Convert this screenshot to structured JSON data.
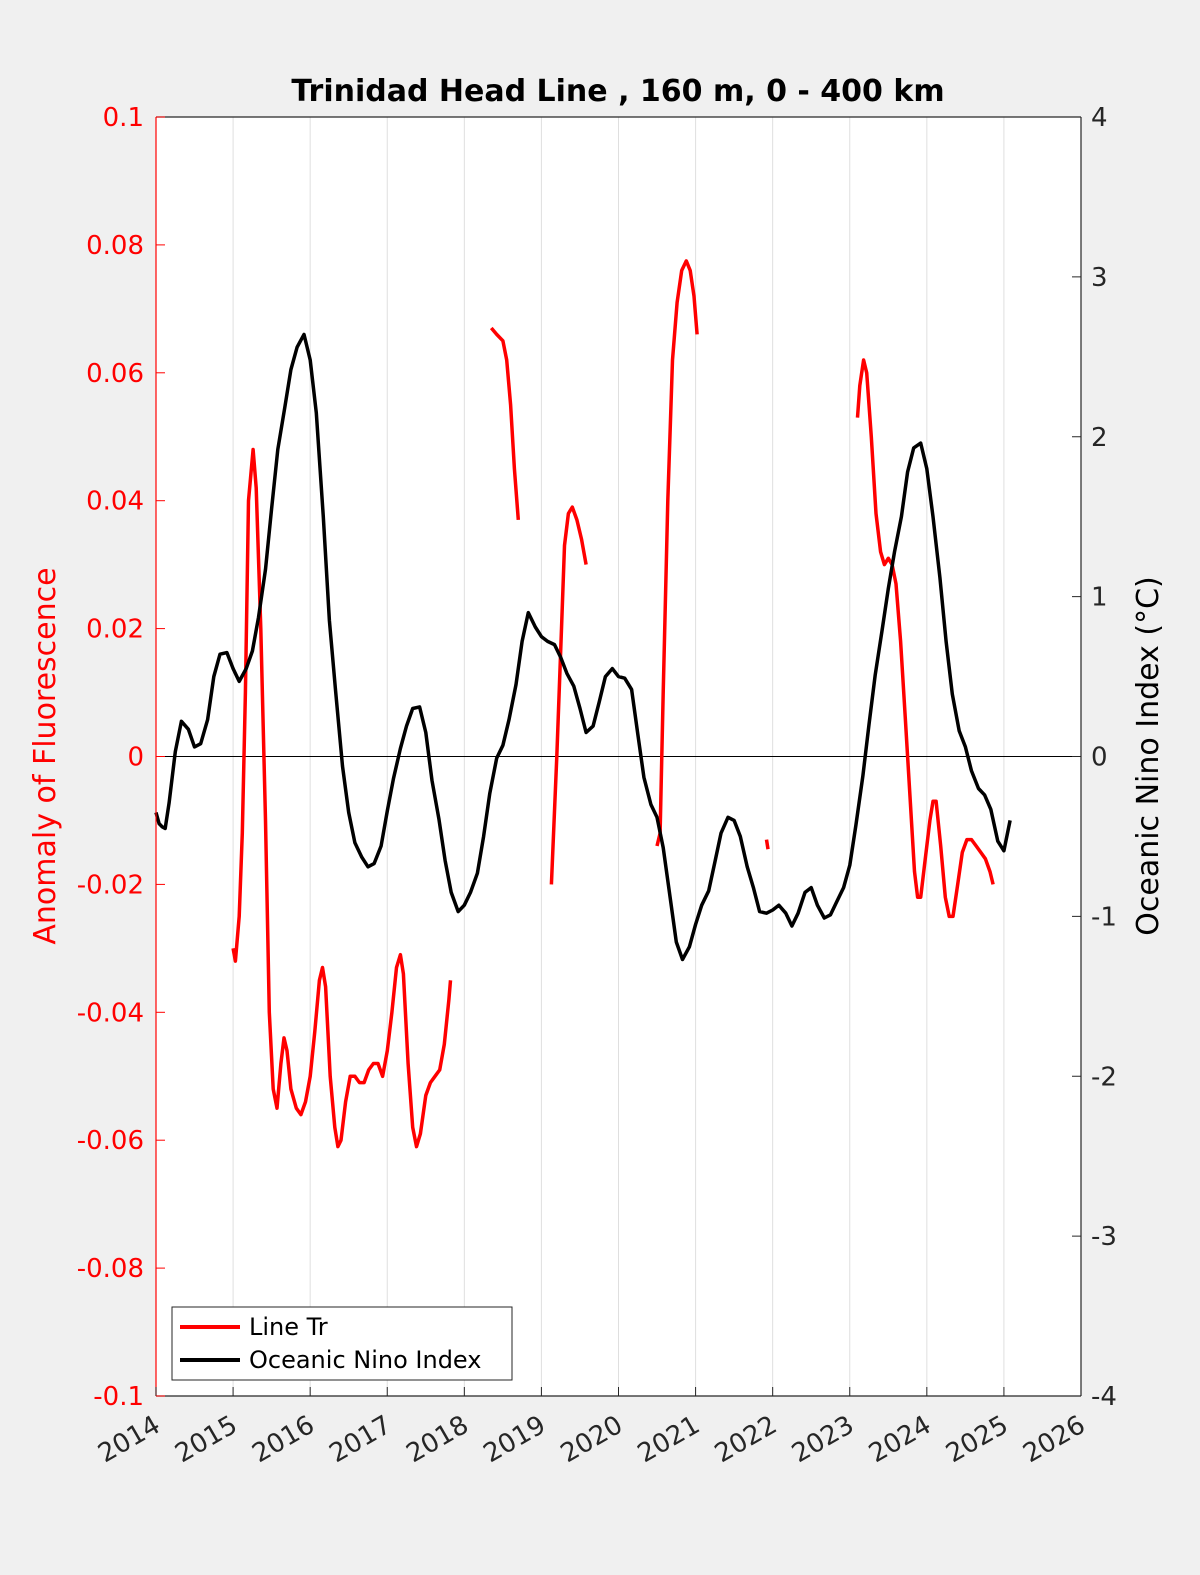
{
  "chart_data": {
    "type": "line",
    "title": "Trinidad Head Line , 160 m, 0 - 400 km",
    "xlabel": "",
    "ylabel_left": "Anomaly of Fluorescence",
    "ylabel_right": "Oceanic Nino Index (°C)",
    "xlim": [
      2014,
      2026
    ],
    "ylim_left": [
      -0.1,
      0.1
    ],
    "ylim_right": [
      -4,
      4
    ],
    "x_ticks": [
      "2014",
      "2015",
      "2016",
      "2017",
      "2018",
      "2019",
      "2020",
      "2021",
      "2022",
      "2023",
      "2024",
      "2025",
      "2026"
    ],
    "y_left_ticks": [
      "-0.1",
      "-0.08",
      "-0.06",
      "-0.04",
      "-0.02",
      "0",
      "0.02",
      "0.04",
      "0.06",
      "0.08",
      "0.1"
    ],
    "y_right_ticks": [
      "-4",
      "-3",
      "-2",
      "-1",
      "0",
      "1",
      "2",
      "3",
      "4"
    ],
    "grid": "vertical",
    "zero_line": true,
    "legend": {
      "location": "bottom-left",
      "entries": [
        "Line Tr",
        "Oceanic Nino Index"
      ]
    },
    "series": [
      {
        "name": "Line Tr",
        "axis": "left",
        "color": "#ff0000",
        "segments": [
          [
            [
              2015.0,
              -0.03
            ],
            [
              2015.03,
              -0.032
            ],
            [
              2015.08,
              -0.025
            ],
            [
              2015.12,
              -0.012
            ],
            [
              2015.16,
              0.01
            ],
            [
              2015.2,
              0.04
            ],
            [
              2015.26,
              0.048
            ],
            [
              2015.3,
              0.042
            ],
            [
              2015.36,
              0.02
            ],
            [
              2015.42,
              -0.01
            ],
            [
              2015.47,
              -0.04
            ],
            [
              2015.52,
              -0.052
            ],
            [
              2015.57,
              -0.055
            ],
            [
              2015.62,
              -0.048
            ],
            [
              2015.66,
              -0.044
            ],
            [
              2015.7,
              -0.046
            ],
            [
              2015.75,
              -0.052
            ],
            [
              2015.82,
              -0.055
            ],
            [
              2015.88,
              -0.056
            ],
            [
              2015.94,
              -0.054
            ],
            [
              2016.0,
              -0.05
            ],
            [
              2016.06,
              -0.043
            ],
            [
              2016.12,
              -0.035
            ],
            [
              2016.16,
              -0.033
            ],
            [
              2016.2,
              -0.036
            ],
            [
              2016.26,
              -0.05
            ],
            [
              2016.32,
              -0.058
            ],
            [
              2016.36,
              -0.061
            ],
            [
              2016.4,
              -0.06
            ],
            [
              2016.46,
              -0.054
            ],
            [
              2016.52,
              -0.05
            ],
            [
              2016.58,
              -0.05
            ],
            [
              2016.64,
              -0.051
            ],
            [
              2016.7,
              -0.051
            ],
            [
              2016.76,
              -0.049
            ],
            [
              2016.82,
              -0.048
            ],
            [
              2016.88,
              -0.048
            ],
            [
              2016.94,
              -0.05
            ],
            [
              2017.0,
              -0.046
            ],
            [
              2017.06,
              -0.04
            ],
            [
              2017.12,
              -0.033
            ],
            [
              2017.17,
              -0.031
            ],
            [
              2017.21,
              -0.034
            ],
            [
              2017.27,
              -0.048
            ],
            [
              2017.33,
              -0.058
            ],
            [
              2017.38,
              -0.061
            ],
            [
              2017.43,
              -0.059
            ],
            [
              2017.5,
              -0.053
            ],
            [
              2017.56,
              -0.051
            ],
            [
              2017.62,
              -0.05
            ],
            [
              2017.68,
              -0.049
            ],
            [
              2017.74,
              -0.045
            ],
            [
              2017.8,
              -0.038
            ],
            [
              2017.82,
              -0.035
            ]
          ],
          [
            [
              2018.35,
              0.067
            ],
            [
              2018.42,
              0.066
            ],
            [
              2018.5,
              0.065
            ],
            [
              2018.55,
              0.062
            ],
            [
              2018.6,
              0.055
            ],
            [
              2018.65,
              0.045
            ],
            [
              2018.7,
              0.037
            ]
          ],
          [
            [
              2019.13,
              -0.02
            ],
            [
              2019.2,
              0.0
            ],
            [
              2019.26,
              0.02
            ],
            [
              2019.3,
              0.033
            ],
            [
              2019.35,
              0.038
            ],
            [
              2019.4,
              0.039
            ],
            [
              2019.46,
              0.037
            ],
            [
              2019.52,
              0.034
            ],
            [
              2019.58,
              0.03
            ]
          ],
          [
            [
              2020.5,
              -0.014
            ],
            [
              2020.54,
              -0.012
            ],
            [
              2020.58,
              0.01
            ],
            [
              2020.64,
              0.04
            ],
            [
              2020.7,
              0.062
            ],
            [
              2020.76,
              0.071
            ],
            [
              2020.82,
              0.076
            ],
            [
              2020.88,
              0.0775
            ],
            [
              2020.93,
              0.076
            ],
            [
              2020.98,
              0.072
            ],
            [
              2021.02,
              0.066
            ]
          ],
          [
            [
              2021.92,
              -0.013
            ],
            [
              2021.94,
              -0.0145
            ]
          ],
          [
            [
              2023.1,
              0.053
            ],
            [
              2023.13,
              0.058
            ],
            [
              2023.18,
              0.062
            ],
            [
              2023.22,
              0.06
            ],
            [
              2023.28,
              0.05
            ],
            [
              2023.34,
              0.038
            ],
            [
              2023.4,
              0.032
            ],
            [
              2023.45,
              0.03
            ],
            [
              2023.5,
              0.031
            ],
            [
              2023.55,
              0.03
            ],
            [
              2023.6,
              0.027
            ],
            [
              2023.66,
              0.018
            ],
            [
              2023.72,
              0.006
            ],
            [
              2023.78,
              -0.006
            ],
            [
              2023.84,
              -0.018
            ],
            [
              2023.88,
              -0.022
            ],
            [
              2023.92,
              -0.022
            ],
            [
              2023.97,
              -0.017
            ],
            [
              2024.04,
              -0.01
            ],
            [
              2024.08,
              -0.007
            ],
            [
              2024.12,
              -0.007
            ],
            [
              2024.18,
              -0.014
            ],
            [
              2024.24,
              -0.022
            ],
            [
              2024.29,
              -0.025
            ],
            [
              2024.34,
              -0.025
            ],
            [
              2024.4,
              -0.02
            ],
            [
              2024.46,
              -0.015
            ],
            [
              2024.52,
              -0.013
            ],
            [
              2024.58,
              -0.013
            ],
            [
              2024.64,
              -0.014
            ],
            [
              2024.7,
              -0.015
            ],
            [
              2024.76,
              -0.016
            ],
            [
              2024.82,
              -0.018
            ],
            [
              2024.86,
              -0.02
            ]
          ]
        ]
      },
      {
        "name": "Oceanic Nino Index",
        "axis": "right",
        "color": "#000000",
        "segments": [
          [
            [
              2014.0,
              -0.35
            ],
            [
              2014.04,
              -0.42
            ],
            [
              2014.08,
              -0.44
            ],
            [
              2014.12,
              -0.45
            ],
            [
              2014.17,
              -0.29
            ],
            [
              2014.25,
              0.03
            ],
            [
              2014.33,
              0.22
            ],
            [
              2014.42,
              0.17
            ],
            [
              2014.5,
              0.06
            ],
            [
              2014.58,
              0.08
            ],
            [
              2014.67,
              0.23
            ],
            [
              2014.75,
              0.5
            ],
            [
              2014.83,
              0.64
            ],
            [
              2014.92,
              0.65
            ],
            [
              2015.0,
              0.55
            ],
            [
              2015.08,
              0.47
            ],
            [
              2015.17,
              0.55
            ],
            [
              2015.25,
              0.66
            ],
            [
              2015.33,
              0.87
            ],
            [
              2015.42,
              1.17
            ],
            [
              2015.5,
              1.55
            ],
            [
              2015.58,
              1.92
            ],
            [
              2015.67,
              2.18
            ],
            [
              2015.75,
              2.42
            ],
            [
              2015.83,
              2.56
            ],
            [
              2015.92,
              2.64
            ],
            [
              2016.0,
              2.48
            ],
            [
              2016.08,
              2.15
            ],
            [
              2016.17,
              1.5
            ],
            [
              2016.25,
              0.85
            ],
            [
              2016.33,
              0.41
            ],
            [
              2016.42,
              -0.06
            ],
            [
              2016.5,
              -0.35
            ],
            [
              2016.58,
              -0.54
            ],
            [
              2016.67,
              -0.63
            ],
            [
              2016.75,
              -0.69
            ],
            [
              2016.83,
              -0.67
            ],
            [
              2016.92,
              -0.56
            ],
            [
              2017.0,
              -0.34
            ],
            [
              2017.08,
              -0.14
            ],
            [
              2017.17,
              0.05
            ],
            [
              2017.25,
              0.19
            ],
            [
              2017.33,
              0.3
            ],
            [
              2017.42,
              0.31
            ],
            [
              2017.5,
              0.15
            ],
            [
              2017.58,
              -0.15
            ],
            [
              2017.67,
              -0.39
            ],
            [
              2017.75,
              -0.65
            ],
            [
              2017.83,
              -0.85
            ],
            [
              2017.92,
              -0.97
            ],
            [
              2018.0,
              -0.93
            ],
            [
              2018.08,
              -0.85
            ],
            [
              2018.17,
              -0.73
            ],
            [
              2018.25,
              -0.5
            ],
            [
              2018.33,
              -0.23
            ],
            [
              2018.42,
              -0.01
            ],
            [
              2018.5,
              0.07
            ],
            [
              2018.58,
              0.23
            ],
            [
              2018.67,
              0.45
            ],
            [
              2018.75,
              0.72
            ],
            [
              2018.83,
              0.9
            ],
            [
              2018.92,
              0.81
            ],
            [
              2019.0,
              0.75
            ],
            [
              2019.08,
              0.72
            ],
            [
              2019.17,
              0.7
            ],
            [
              2019.25,
              0.62
            ],
            [
              2019.33,
              0.52
            ],
            [
              2019.42,
              0.44
            ],
            [
              2019.5,
              0.3
            ],
            [
              2019.58,
              0.15
            ],
            [
              2019.67,
              0.19
            ],
            [
              2019.75,
              0.34
            ],
            [
              2019.83,
              0.5
            ],
            [
              2019.92,
              0.55
            ],
            [
              2020.0,
              0.5
            ],
            [
              2020.08,
              0.49
            ],
            [
              2020.17,
              0.42
            ],
            [
              2020.25,
              0.14
            ],
            [
              2020.33,
              -0.13
            ],
            [
              2020.42,
              -0.3
            ],
            [
              2020.5,
              -0.38
            ],
            [
              2020.58,
              -0.57
            ],
            [
              2020.67,
              -0.88
            ],
            [
              2020.75,
              -1.16
            ],
            [
              2020.83,
              -1.27
            ],
            [
              2020.92,
              -1.19
            ],
            [
              2021.0,
              -1.05
            ],
            [
              2021.08,
              -0.93
            ],
            [
              2021.17,
              -0.84
            ],
            [
              2021.25,
              -0.66
            ],
            [
              2021.33,
              -0.48
            ],
            [
              2021.42,
              -0.38
            ],
            [
              2021.5,
              -0.4
            ],
            [
              2021.58,
              -0.5
            ],
            [
              2021.67,
              -0.69
            ],
            [
              2021.75,
              -0.82
            ],
            [
              2021.83,
              -0.97
            ],
            [
              2021.92,
              -0.98
            ],
            [
              2022.0,
              -0.96
            ],
            [
              2022.08,
              -0.93
            ],
            [
              2022.17,
              -0.98
            ],
            [
              2022.25,
              -1.06
            ],
            [
              2022.33,
              -0.98
            ],
            [
              2022.42,
              -0.85
            ],
            [
              2022.5,
              -0.82
            ],
            [
              2022.58,
              -0.93
            ],
            [
              2022.67,
              -1.01
            ],
            [
              2022.75,
              -0.99
            ],
            [
              2022.83,
              -0.91
            ],
            [
              2022.92,
              -0.82
            ],
            [
              2023.0,
              -0.68
            ],
            [
              2023.08,
              -0.43
            ],
            [
              2023.17,
              -0.12
            ],
            [
              2023.25,
              0.2
            ],
            [
              2023.33,
              0.51
            ],
            [
              2023.42,
              0.79
            ],
            [
              2023.5,
              1.05
            ],
            [
              2023.58,
              1.28
            ],
            [
              2023.67,
              1.5
            ],
            [
              2023.75,
              1.78
            ],
            [
              2023.83,
              1.93
            ],
            [
              2023.92,
              1.96
            ],
            [
              2024.0,
              1.8
            ],
            [
              2024.08,
              1.5
            ],
            [
              2024.17,
              1.12
            ],
            [
              2024.25,
              0.72
            ],
            [
              2024.33,
              0.39
            ],
            [
              2024.42,
              0.16
            ],
            [
              2024.5,
              0.06
            ],
            [
              2024.58,
              -0.09
            ],
            [
              2024.67,
              -0.2
            ],
            [
              2024.75,
              -0.24
            ],
            [
              2024.83,
              -0.33
            ],
            [
              2024.92,
              -0.53
            ],
            [
              2025.0,
              -0.59
            ],
            [
              2025.08,
              -0.4
            ]
          ]
        ]
      }
    ]
  }
}
